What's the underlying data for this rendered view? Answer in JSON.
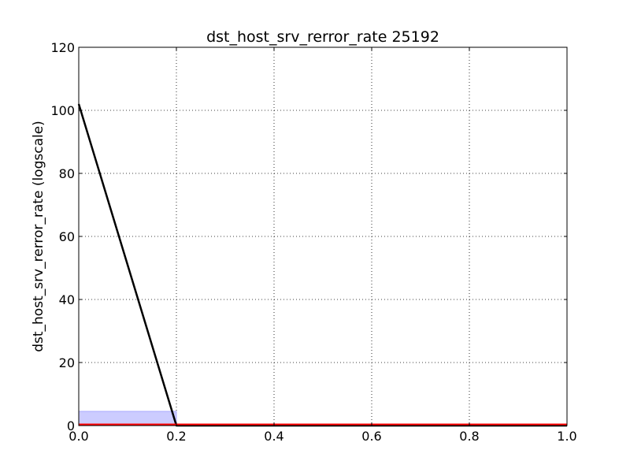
{
  "chart_data": {
    "type": "line",
    "title": "dst_host_srv_rerror_rate 25192",
    "xlabel": "",
    "ylabel": "dst_host_srv_rerror_rate (logscale)",
    "xlim": [
      0.0,
      1.0
    ],
    "ylim": [
      0,
      120
    ],
    "grid": true,
    "legend": "none",
    "x_ticks": [
      "0.0",
      "0.2",
      "0.4",
      "0.6",
      "0.8",
      "1.0"
    ],
    "y_ticks": [
      "0",
      "20",
      "40",
      "60",
      "80",
      "100",
      "120"
    ],
    "series": [
      {
        "kind": "line",
        "color": "#000000",
        "x": [
          0.0,
          0.2,
          1.0
        ],
        "y": [
          102,
          0,
          0
        ]
      },
      {
        "kind": "line",
        "color": "#ff0000",
        "x": [
          0.0,
          1.0
        ],
        "y": [
          0.3,
          0.3
        ]
      }
    ],
    "bars": [
      {
        "x_start": 0.0,
        "x_end": 0.2,
        "value": 4.5,
        "fill": "#ccccff",
        "edge": "#aaaaff"
      }
    ]
  }
}
